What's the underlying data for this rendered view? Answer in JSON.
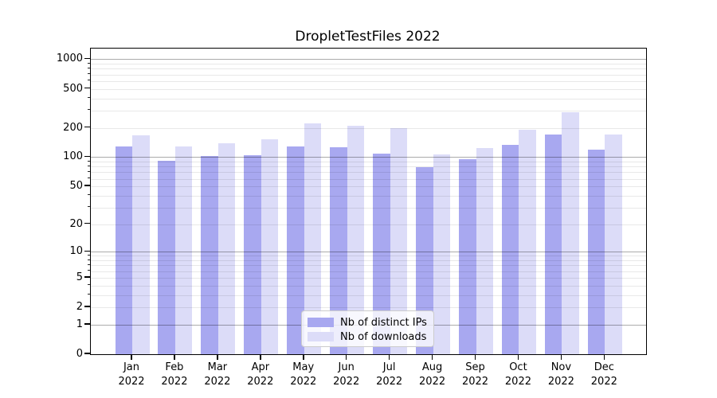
{
  "chart_data": {
    "type": "bar",
    "title": "DropletTestFiles 2022",
    "categories": [
      "Jan",
      "Feb",
      "Mar",
      "Apr",
      "May",
      "Jun",
      "Jul",
      "Aug",
      "Sep",
      "Oct",
      "Nov",
      "Dec"
    ],
    "category_year": "2022",
    "series": [
      {
        "name": "Nb of distinct IPs",
        "color": "#a8a8f0",
        "values": [
          128,
          91,
          102,
          104,
          128,
          126,
          108,
          79,
          95,
          135,
          170,
          119
        ]
      },
      {
        "name": "Nb of downloads",
        "color": "#dcdcf8",
        "values": [
          168,
          128,
          139,
          152,
          222,
          209,
          198,
          106,
          124,
          190,
          289,
          172
        ]
      }
    ],
    "xlabel": "",
    "ylabel": "",
    "yscale": "log1p",
    "ylim": [
      0,
      1285
    ],
    "y_ticks_labeled": [
      1000,
      500,
      200,
      100,
      50,
      20,
      10,
      5,
      2,
      1,
      0
    ],
    "y_major_grid_values": [
      1000,
      100,
      10,
      1
    ],
    "y_minor_grid_values": [
      2,
      3,
      4,
      5,
      6,
      7,
      8,
      9,
      20,
      30,
      40,
      50,
      60,
      70,
      80,
      90,
      200,
      300,
      400,
      500,
      600,
      700,
      800,
      900
    ],
    "grid": {
      "major_color": "rgba(0,0,0,0.33)",
      "minor_color": "rgba(0,0,0,0.09)",
      "on": true
    },
    "legend_position": "lower center"
  }
}
